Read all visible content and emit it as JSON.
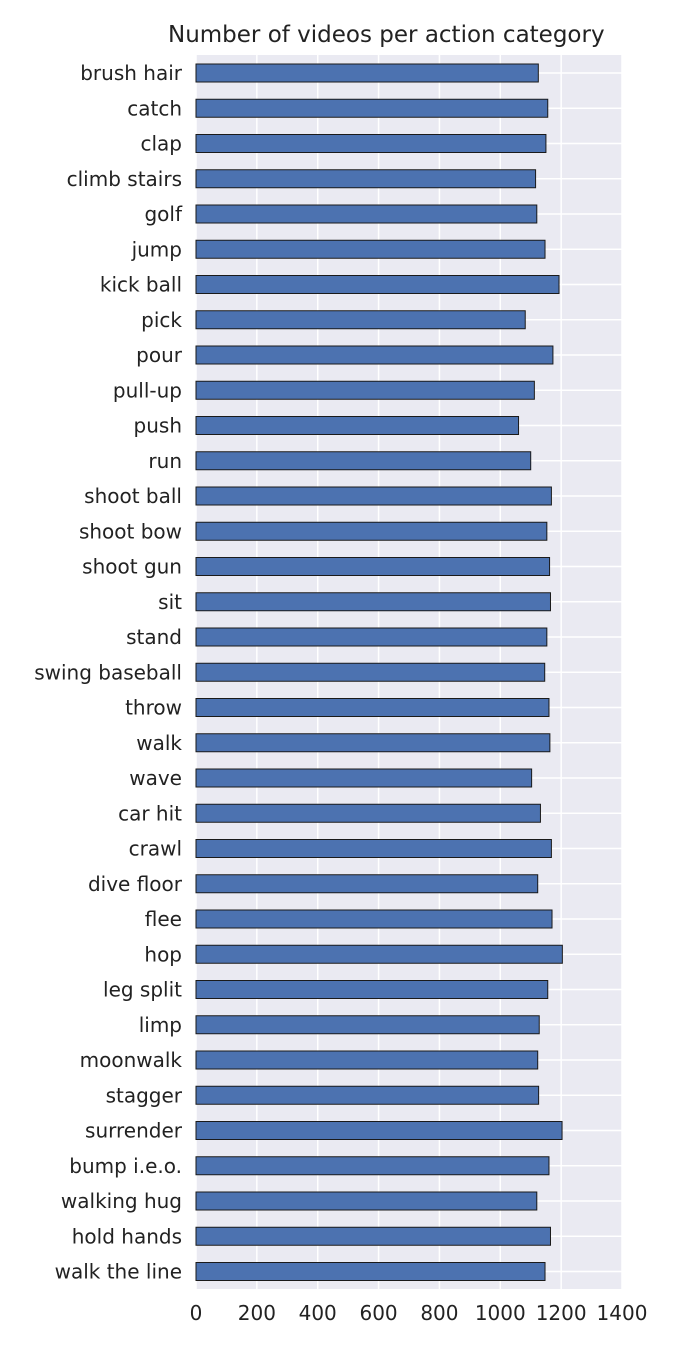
{
  "chart_data": {
    "type": "bar",
    "orientation": "horizontal",
    "title": "Number of videos per action category",
    "xlabel": "",
    "ylabel": "",
    "xlim": [
      0,
      1400
    ],
    "xticks": [
      0,
      200,
      400,
      600,
      800,
      1000,
      1200,
      1400
    ],
    "grid": true,
    "categories": [
      "brush hair",
      "catch",
      "clap",
      "climb stairs",
      "golf",
      "jump",
      "kick ball",
      "pick",
      "pour",
      "pull-up",
      "push",
      "run",
      "shoot ball",
      "shoot bow",
      "shoot gun",
      "sit",
      "stand",
      "swing baseball",
      "throw",
      "walk",
      "wave",
      "car hit",
      "crawl",
      "dive floor",
      "flee",
      "hop",
      "leg split",
      "limp",
      "moonwalk",
      "stagger",
      "surrender",
      "bump i.e.o.",
      "walking hug",
      "hold hands",
      "walk the line"
    ],
    "values": [
      1125,
      1156,
      1150,
      1116,
      1120,
      1147,
      1193,
      1082,
      1173,
      1112,
      1060,
      1100,
      1168,
      1153,
      1162,
      1165,
      1153,
      1146,
      1160,
      1163,
      1103,
      1132,
      1168,
      1123,
      1170,
      1204,
      1156,
      1128,
      1123,
      1126,
      1203,
      1160,
      1120,
      1165,
      1147
    ],
    "colors": {
      "bar": "#4c72b0",
      "bar_edge": "#1a1a1a",
      "plot_bg": "#eaeaf2",
      "grid": "#ffffff",
      "text": "#222222"
    }
  }
}
